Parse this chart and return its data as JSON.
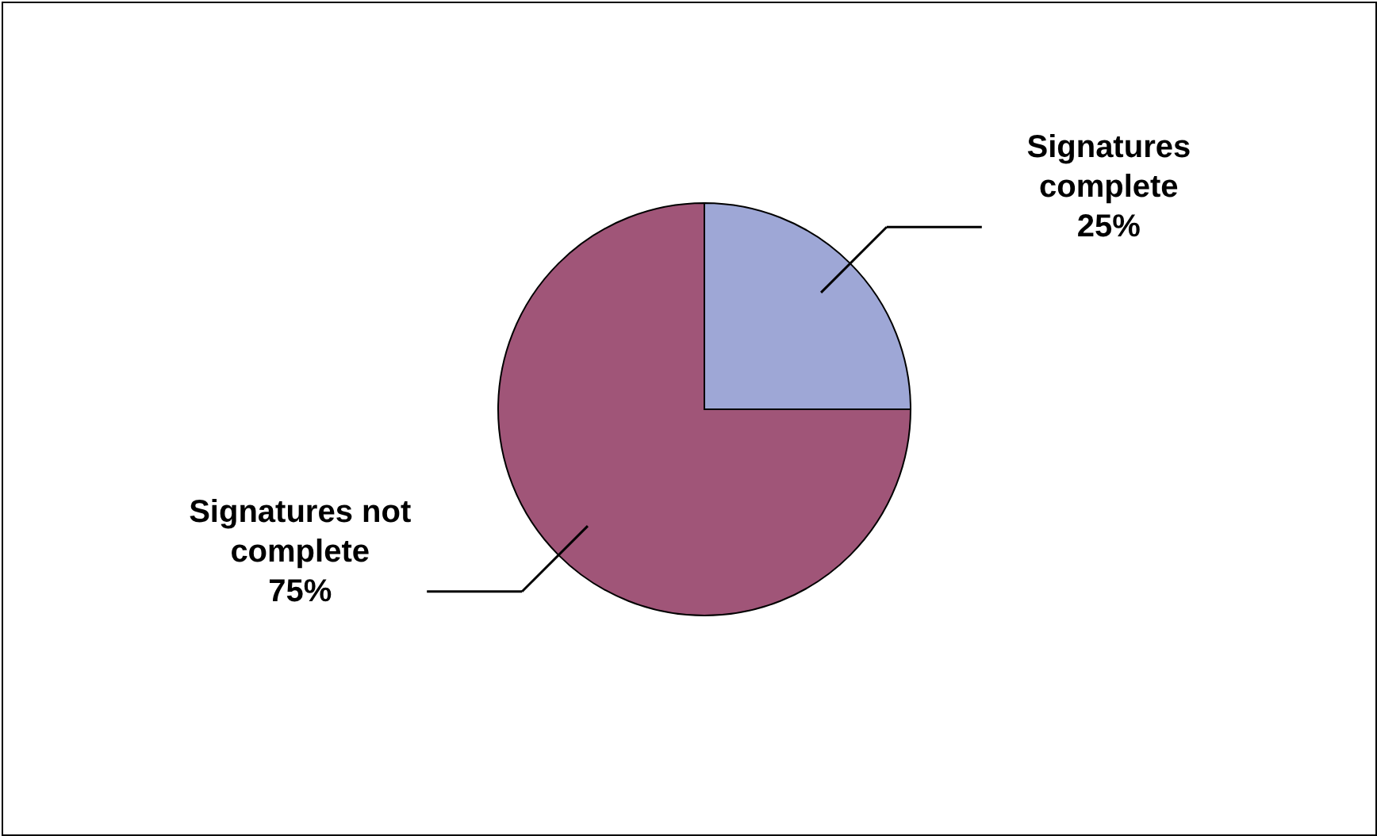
{
  "chart_data": {
    "type": "pie",
    "categories": [
      "Signatures complete",
      "Signatures not complete"
    ],
    "values": [
      25,
      75
    ],
    "colors": [
      "#9ea7d6",
      "#a05578"
    ],
    "value_labels": [
      "25%",
      "75%"
    ]
  }
}
